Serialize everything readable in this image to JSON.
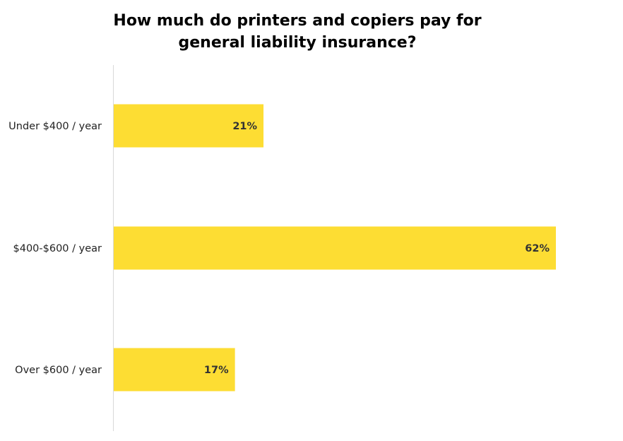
{
  "chart_data": {
    "type": "bar",
    "orientation": "horizontal",
    "title_lines": [
      "How much do printers and copiers pay for",
      "general liability insurance?"
    ],
    "categories": [
      "Under $400 / year",
      "$400-$600 / year",
      "Over $600 / year"
    ],
    "values": [
      21,
      62,
      17
    ],
    "value_labels": [
      "21%",
      "62%",
      "17%"
    ],
    "xlim": [
      0,
      62
    ],
    "grid": false,
    "legend": "none",
    "colors": {
      "bar": "#FDDD33",
      "axis": "#D9D9D9",
      "category_text": "#222222",
      "value_text": "#333333"
    }
  }
}
